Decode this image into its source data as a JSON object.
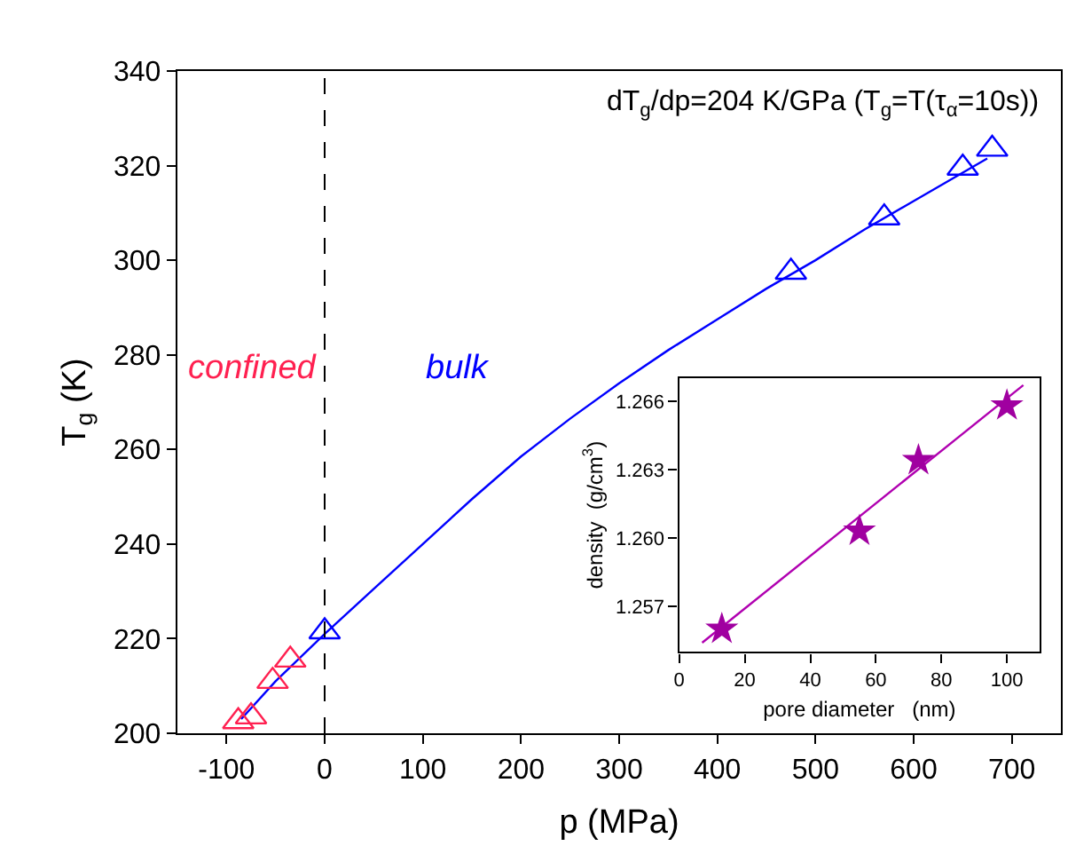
{
  "chart_data": [
    {
      "type": "scatter",
      "xlabel": "p (MPa)",
      "ylabel": "T$_{g}$ (K)",
      "annotations": [
        "dT$_{g}$/dp=204 K/GPa (T$_{g}$=T(τ$_{α}$=10s))"
      ],
      "series": [
        {
          "type": "line",
          "color": "#0000ff",
          "x": [
            -85,
            -50,
            0,
            50,
            100,
            150,
            200,
            250,
            300,
            350,
            400,
            450,
            500,
            550,
            600,
            650,
            675
          ],
          "values": [
            203,
            211,
            221,
            230.5,
            240,
            249.5,
            258.5,
            266.5,
            274,
            281,
            287.5,
            294,
            300,
            306.5,
            312.5,
            318.5,
            321.5
          ],
          "marker": "none"
        },
        {
          "name": "confined",
          "color": "#ff2050",
          "x": [
            -88,
            -75,
            -53,
            -35
          ],
          "values": [
            202.5,
            203.5,
            211,
            215.5
          ],
          "marker": "triangle"
        },
        {
          "name": "bulk",
          "color": "#0000ff",
          "x": [
            0,
            475,
            570,
            650,
            680
          ],
          "values": [
            221.5,
            297.5,
            309,
            319.5,
            323.5
          ],
          "marker": "triangle"
        }
      ],
      "xlim": [
        -150,
        750
      ],
      "xticks": [
        -100,
        0,
        100,
        200,
        300,
        400,
        500,
        600,
        700
      ],
      "ylim": [
        200,
        340
      ],
      "yticks": [
        200,
        220,
        240,
        260,
        280,
        300,
        320,
        340
      ],
      "ref_lines": [
        {
          "axis": "x",
          "value": 0,
          "color": "#000000",
          "line_style": "dashed"
        }
      ],
      "legend": false
    },
    {
      "type": "scatter",
      "xlabel": "pore diameter   (nm)",
      "ylabel": "density  (g/cm$^{3}$)",
      "series": [
        {
          "type": "line",
          "color": "#b000b0",
          "x": [
            7,
            105
          ],
          "values": [
            1.2554,
            1.2667
          ],
          "marker": "none"
        },
        {
          "color": "#a000a0",
          "x": [
            13,
            55,
            73,
            100
          ],
          "values": [
            1.256,
            1.2603,
            1.2634,
            1.2658
          ],
          "marker": "star"
        }
      ],
      "xlim": [
        0,
        110
      ],
      "xticks": [
        0,
        20,
        40,
        60,
        80,
        100
      ],
      "ylim": [
        1.255,
        1.267
      ],
      "yticks": [
        {
          "value": 1.257,
          "label": "1.257"
        },
        {
          "value": 1.26,
          "label": "1.260"
        },
        {
          "value": 1.263,
          "label": "1.263"
        },
        {
          "value": 1.266,
          "label": "1.266"
        }
      ],
      "legend": false
    }
  ]
}
